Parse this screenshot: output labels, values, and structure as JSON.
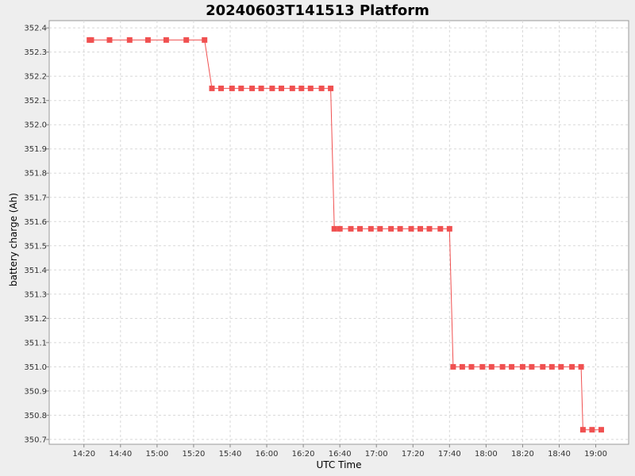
{
  "chart_data": {
    "type": "line",
    "title": "20240603T141513 Platform",
    "xlabel": "UTC Time",
    "ylabel": "battery charge (Ah)",
    "x_ticks": [
      "14:20",
      "14:40",
      "15:00",
      "15:20",
      "15:40",
      "16:00",
      "16:20",
      "16:40",
      "17:00",
      "17:20",
      "17:40",
      "18:00",
      "18:20",
      "18:40",
      "19:00"
    ],
    "y_ticks": [
      "350.7",
      "350.8",
      "350.9",
      "351.0",
      "351.1",
      "351.2",
      "351.3",
      "351.4",
      "351.5",
      "351.6",
      "351.7",
      "351.8",
      "351.9",
      "352.0",
      "352.1",
      "352.2",
      "352.3",
      "352.4"
    ],
    "xlim": [
      "14:01",
      "19:18"
    ],
    "ylim": [
      350.68,
      352.43
    ],
    "grid": true,
    "series_color": "#f05050",
    "series": [
      {
        "x": [
          "14:23",
          "14:24",
          "14:34",
          "14:45",
          "14:55",
          "15:05",
          "15:16",
          "15:26",
          "15:30",
          "15:35",
          "15:41",
          "15:46",
          "15:52",
          "15:57",
          "16:03",
          "16:08",
          "16:14",
          "16:19",
          "16:24",
          "16:30",
          "16:35",
          "16:37",
          "16:40",
          "16:46",
          "16:51",
          "16:57",
          "17:02",
          "17:08",
          "17:13",
          "17:19",
          "17:24",
          "17:29",
          "17:35",
          "17:40",
          "17:42",
          "17:47",
          "17:52",
          "17:58",
          "18:03",
          "18:09",
          "18:14",
          "18:20",
          "18:25",
          "18:31",
          "18:36",
          "18:41",
          "18:47",
          "18:52",
          "18:53",
          "18:58",
          "19:03"
        ],
        "y": [
          352.35,
          352.35,
          352.35,
          352.35,
          352.35,
          352.35,
          352.35,
          352.35,
          352.15,
          352.15,
          352.15,
          352.15,
          352.15,
          352.15,
          352.15,
          352.15,
          352.15,
          352.15,
          352.15,
          352.15,
          352.15,
          351.57,
          351.57,
          351.57,
          351.57,
          351.57,
          351.57,
          351.57,
          351.57,
          351.57,
          351.57,
          351.57,
          351.57,
          351.57,
          351.0,
          351.0,
          351.0,
          351.0,
          351.0,
          351.0,
          351.0,
          351.0,
          351.0,
          351.0,
          351.0,
          351.0,
          351.0,
          351.0,
          350.74,
          350.74,
          350.74
        ]
      }
    ]
  }
}
